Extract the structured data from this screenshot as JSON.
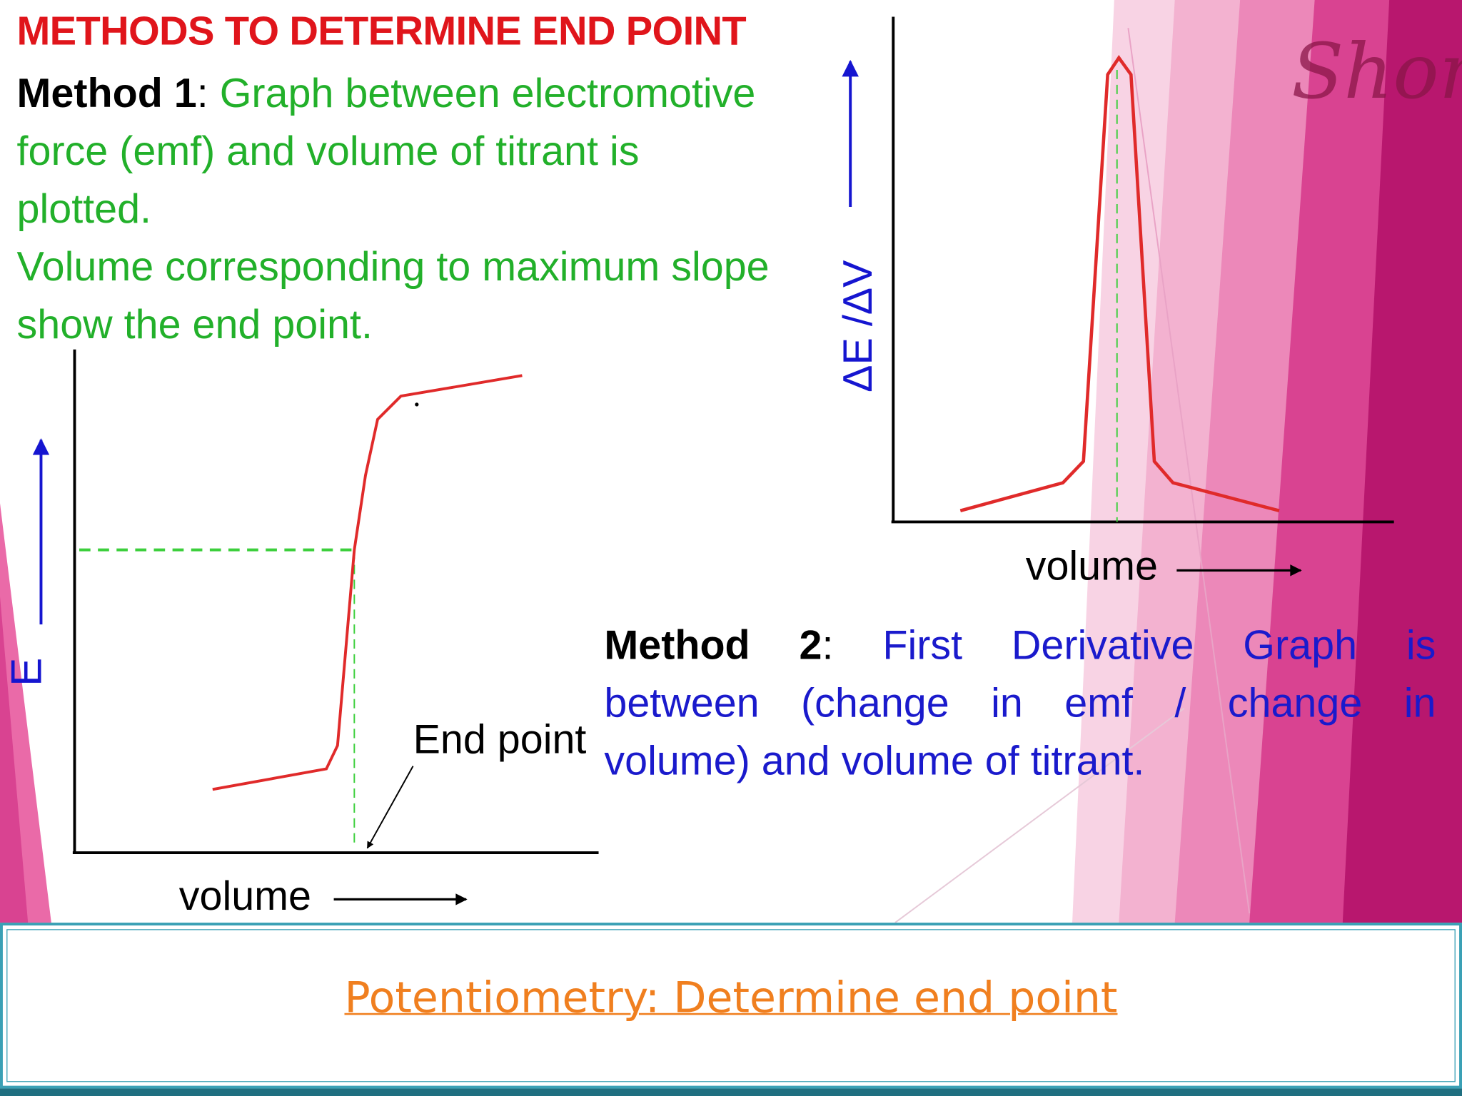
{
  "title": "METHODS TO DETERMINE END POINT",
  "watermark": "Shom",
  "method1": {
    "label": "Method 1",
    "colon": ":",
    "lines": [
      "Graph between electromotive",
      "force (emf) and volume of titrant is",
      "plotted.",
      "Volume corresponding to maximum slope",
      "show the end point."
    ]
  },
  "graph1": {
    "y_label": "E",
    "x_label": "volume",
    "annotation": "End point"
  },
  "graph2": {
    "y_label": "ΔE /ΔV",
    "x_label": "volume"
  },
  "method2": {
    "label": "Method 2",
    "colon": ":",
    "lines": [
      "First Derivative Graph is",
      "between (change in emf / change in",
      "volume) and volume of titrant."
    ]
  },
  "footer": {
    "title": "Potentiometry: Determine end point"
  }
}
